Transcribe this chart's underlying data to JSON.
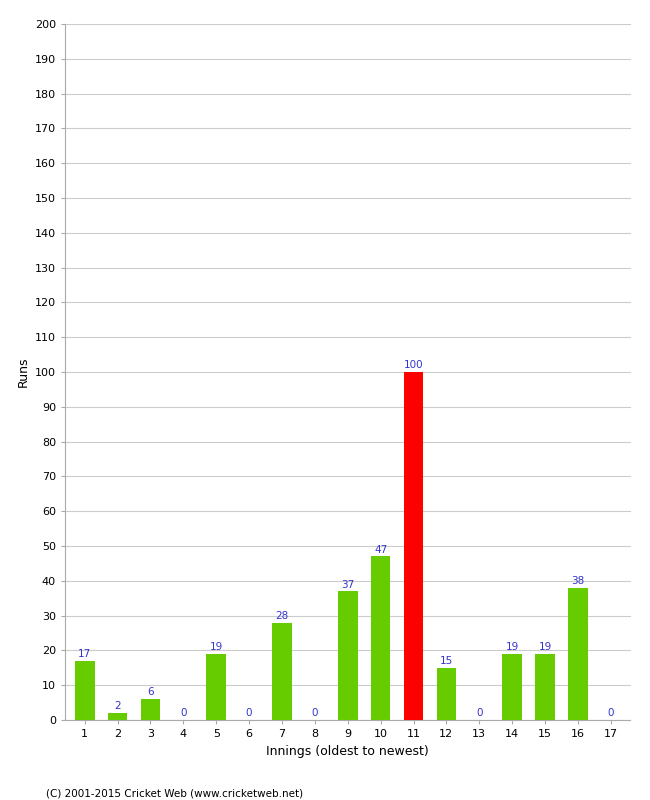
{
  "xlabel": "Innings (oldest to newest)",
  "ylabel": "Runs",
  "categories": [
    1,
    2,
    3,
    4,
    5,
    6,
    7,
    8,
    9,
    10,
    11,
    12,
    13,
    14,
    15,
    16,
    17
  ],
  "values": [
    17,
    2,
    6,
    0,
    19,
    0,
    28,
    0,
    37,
    47,
    100,
    15,
    0,
    19,
    19,
    38,
    0
  ],
  "bar_colors": [
    "#66cc00",
    "#66cc00",
    "#66cc00",
    "#66cc00",
    "#66cc00",
    "#66cc00",
    "#66cc00",
    "#66cc00",
    "#66cc00",
    "#66cc00",
    "#ff0000",
    "#66cc00",
    "#66cc00",
    "#66cc00",
    "#66cc00",
    "#66cc00",
    "#66cc00"
  ],
  "ylim": [
    0,
    200
  ],
  "ytick_step": 10,
  "label_color": "#3333cc",
  "background_color": "#ffffff",
  "grid_color": "#cccccc",
  "footer": "(C) 2001-2015 Cricket Web (www.cricketweb.net)"
}
